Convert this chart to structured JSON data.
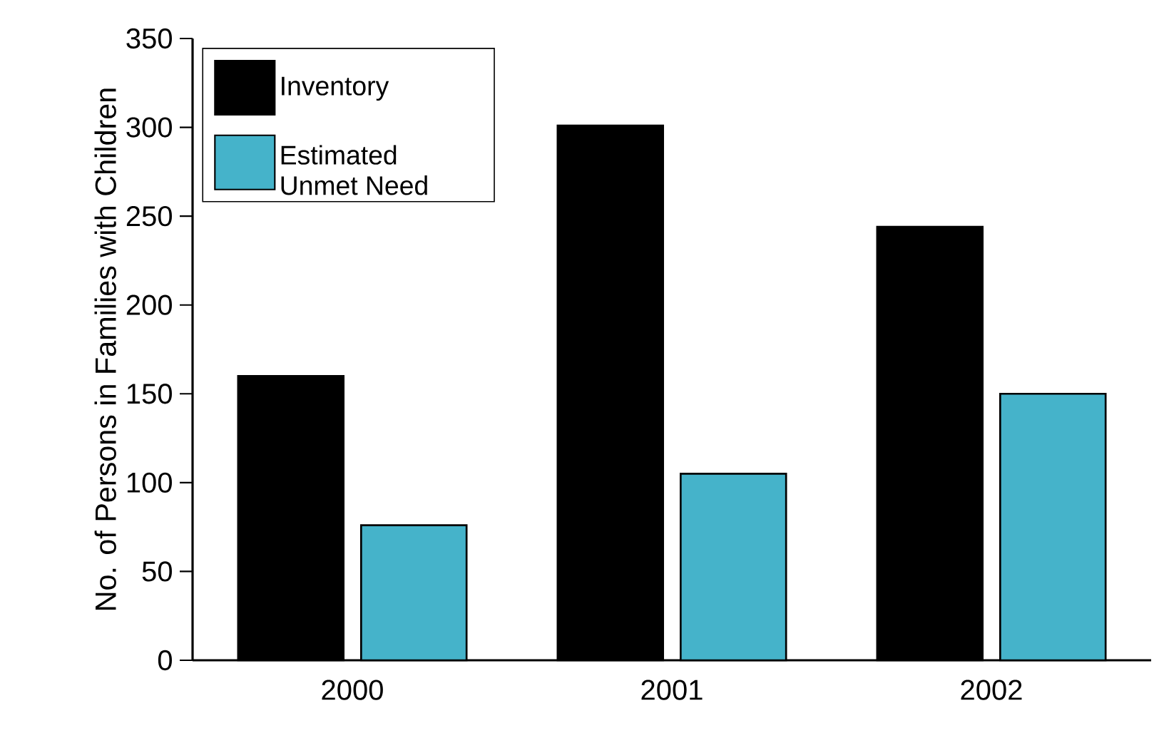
{
  "chart_data": {
    "type": "bar",
    "ylabel": "No. of Persons in Families with Children",
    "categories": [
      "2000",
      "2001",
      "2002"
    ],
    "series": [
      {
        "name": "Inventory",
        "color": "#000000",
        "values": [
          160,
          301,
          244
        ]
      },
      {
        "name": "Estimated Unmet Need",
        "color": "#45b3ca",
        "values": [
          76,
          105,
          150
        ]
      }
    ],
    "ylim": [
      0,
      350
    ],
    "yticks": [
      0,
      50,
      100,
      150,
      200,
      250,
      300,
      350
    ],
    "legend": "top left",
    "grid": false
  }
}
